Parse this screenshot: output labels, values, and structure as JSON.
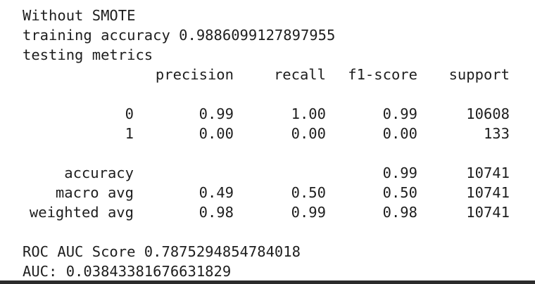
{
  "output": {
    "header_lines": [
      "Without SMOTE",
      "training accuracy 0.9886099127897955",
      "testing metrics"
    ],
    "report": {
      "columns": [
        "precision",
        "recall",
        "f1-score",
        "support"
      ],
      "class_rows": [
        {
          "label": "0",
          "precision": "0.99",
          "recall": "1.00",
          "f1": "0.99",
          "support": "10608"
        },
        {
          "label": "1",
          "precision": "0.00",
          "recall": "0.00",
          "f1": "0.00",
          "support": "133"
        }
      ],
      "summary_rows": [
        {
          "label": "accuracy",
          "precision": "",
          "recall": "",
          "f1": "0.99",
          "support": "10741"
        },
        {
          "label": "macro avg",
          "precision": "0.49",
          "recall": "0.50",
          "f1": "0.50",
          "support": "10741"
        },
        {
          "label": "weighted avg",
          "precision": "0.98",
          "recall": "0.99",
          "f1": "0.98",
          "support": "10741"
        }
      ]
    },
    "footer_lines": [
      "ROC AUC Score 0.7875294854784018",
      "AUC: 0.03843381676631829"
    ]
  }
}
